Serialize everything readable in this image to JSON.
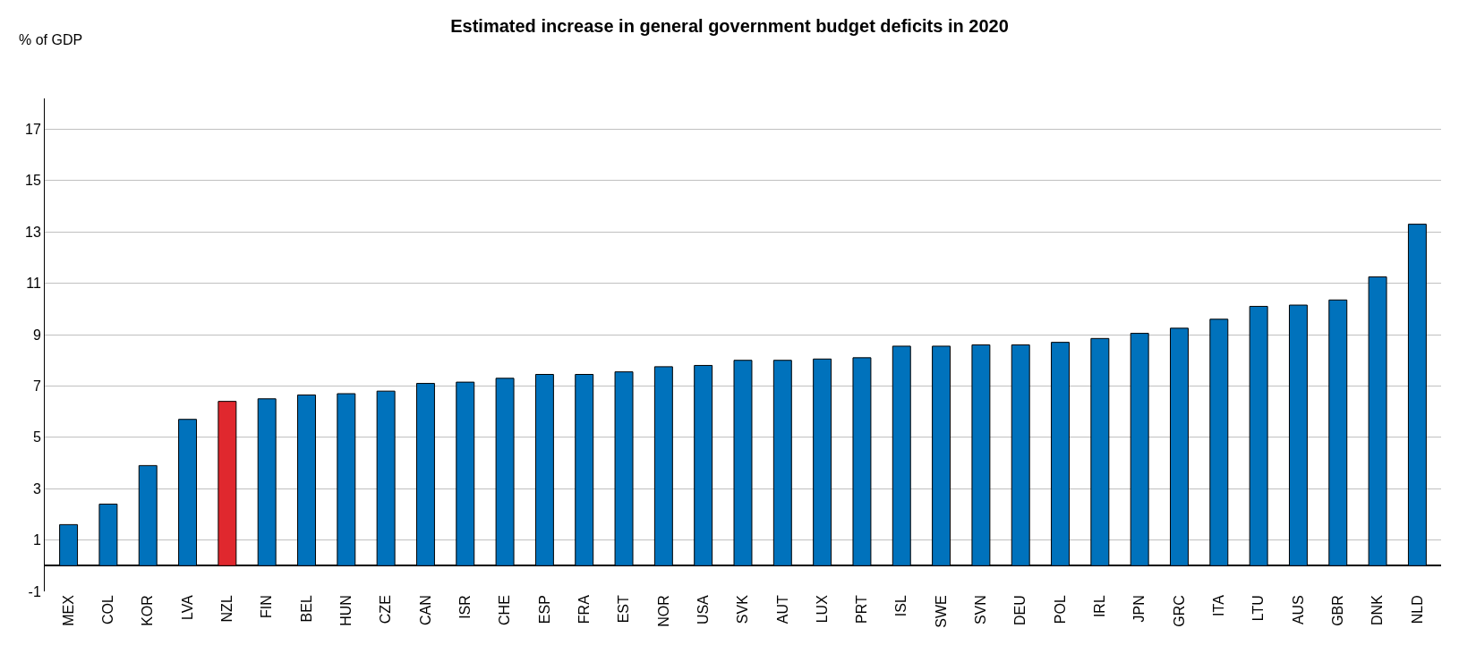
{
  "chart_data": {
    "type": "bar",
    "title": "Estimated increase in general government budget deficits in 2020",
    "ylabel": "% of GDP",
    "categories": [
      "MEX",
      "COL",
      "KOR",
      "LVA",
      "NZL",
      "FIN",
      "BEL",
      "HUN",
      "CZE",
      "CAN",
      "ISR",
      "CHE",
      "ESP",
      "FRA",
      "EST",
      "NOR",
      "USA",
      "SVK",
      "AUT",
      "LUX",
      "PRT",
      "ISL",
      "SWE",
      "SVN",
      "DEU",
      "POL",
      "IRL",
      "JPN",
      "GRC",
      "ITA",
      "LTU",
      "AUS",
      "GBR",
      "DNK",
      "NLD"
    ],
    "values": [
      1.6,
      2.4,
      3.9,
      5.7,
      6.4,
      6.5,
      6.65,
      6.7,
      6.8,
      7.1,
      7.15,
      7.3,
      7.45,
      7.45,
      7.55,
      7.75,
      7.8,
      8.0,
      8.0,
      8.05,
      8.1,
      8.55,
      8.55,
      8.6,
      8.6,
      8.7,
      8.85,
      9.05,
      9.25,
      9.6,
      10.1,
      10.15,
      10.35,
      11.25,
      13.3
    ],
    "colors": [
      "#0072bc",
      "#0072bc",
      "#0072bc",
      "#0072bc",
      "#e0282e",
      "#0072bc",
      "#0072bc",
      "#0072bc",
      "#0072bc",
      "#0072bc",
      "#0072bc",
      "#0072bc",
      "#0072bc",
      "#0072bc",
      "#0072bc",
      "#0072bc",
      "#0072bc",
      "#0072bc",
      "#0072bc",
      "#0072bc",
      "#0072bc",
      "#0072bc",
      "#0072bc",
      "#0072bc",
      "#0072bc",
      "#0072bc",
      "#0072bc",
      "#0072bc",
      "#0072bc",
      "#0072bc",
      "#0072bc",
      "#0072bc",
      "#0072bc",
      "#0072bc",
      "#0072bc"
    ],
    "ylim": [
      -1,
      18.2
    ],
    "yticks": [
      -1,
      1,
      3,
      5,
      7,
      9,
      11,
      13,
      15,
      17
    ],
    "grid": "y"
  }
}
